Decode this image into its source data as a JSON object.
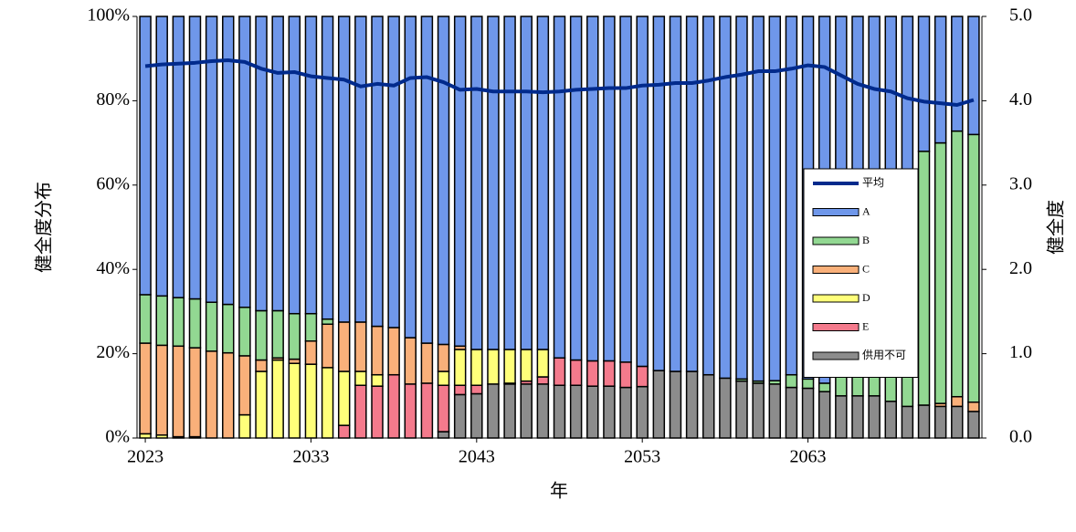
{
  "chart_data": {
    "type": "bar",
    "stacked": true,
    "x": [
      2023,
      2024,
      2025,
      2026,
      2027,
      2028,
      2029,
      2030,
      2031,
      2032,
      2033,
      2034,
      2035,
      2036,
      2037,
      2038,
      2039,
      2040,
      2041,
      2042,
      2043,
      2044,
      2045,
      2046,
      2047,
      2048,
      2049,
      2050,
      2051,
      2052,
      2053,
      2054,
      2055,
      2056,
      2057,
      2058,
      2059,
      2060,
      2061,
      2062,
      2063,
      2064,
      2065,
      2066,
      2067,
      2068,
      2069,
      2070,
      2071,
      2072,
      2073
    ],
    "xlim": [
      2022.5,
      2073.5
    ],
    "xticks": [
      2023,
      2033,
      2043,
      2053,
      2063
    ],
    "xlabel": "年",
    "ylabel": "健全度分布",
    "y2label": "健全度",
    "ylim": [
      0,
      100
    ],
    "yticks": [
      {
        "value": 0,
        "label": "0%"
      },
      {
        "value": 20,
        "label": "20%"
      },
      {
        "value": 40,
        "label": "40%"
      },
      {
        "value": 60,
        "label": "60%"
      },
      {
        "value": 80,
        "label": "80%"
      },
      {
        "value": 100,
        "label": "100%"
      }
    ],
    "y2lim": [
      0,
      5
    ],
    "y2ticks": [
      {
        "value": 0,
        "label": "0.0"
      },
      {
        "value": 1,
        "label": "1.0"
      },
      {
        "value": 2,
        "label": "2.0"
      },
      {
        "value": 3,
        "label": "3.0"
      },
      {
        "value": 4,
        "label": "4.0"
      },
      {
        "value": 5,
        "label": "5.0"
      }
    ],
    "legend": "right",
    "series": [
      {
        "name": "供用不可",
        "color": "#8c8c8c",
        "values": [
          0,
          0,
          0,
          0,
          0,
          0,
          0,
          0,
          0,
          0,
          0,
          0,
          0,
          0,
          0,
          0,
          0,
          0,
          1.5,
          10.3,
          10.5,
          12.8,
          12.8,
          12.8,
          12.8,
          12.5,
          12.5,
          12.3,
          12.3,
          12,
          12.2,
          16,
          15.8,
          15.8,
          15,
          14.2,
          13.5,
          13,
          12.8,
          12,
          11.8,
          11,
          10,
          10,
          10,
          8.7,
          7.5,
          7.8,
          7.5,
          7.5,
          6.3
        ]
      },
      {
        "name": "E",
        "color": "#f47a8c",
        "values": [
          0,
          0,
          0,
          0,
          0,
          0,
          0,
          0,
          0,
          0,
          0,
          0,
          3,
          12.5,
          12.3,
          15,
          12.8,
          13,
          11,
          2.2,
          2,
          0,
          0.2,
          0.7,
          1.7,
          6.5,
          6,
          6,
          6,
          6,
          4.8,
          0,
          0,
          0,
          0,
          0,
          0,
          0,
          0,
          0,
          0,
          0,
          0,
          0,
          0,
          0,
          0,
          0,
          0,
          0,
          0
        ]
      },
      {
        "name": "D",
        "color": "#ffff7a",
        "values": [
          1,
          0.7,
          0.3,
          0.3,
          0,
          0,
          5.5,
          15.8,
          18.5,
          17.7,
          17.5,
          16.7,
          12.8,
          3.3,
          2.7,
          0,
          0,
          0,
          3.3,
          8.5,
          8.5,
          8.2,
          8,
          7.5,
          6.5,
          0,
          0,
          0,
          0,
          0,
          0,
          0,
          0,
          0,
          0,
          0,
          0,
          0,
          0,
          0,
          0,
          0,
          0,
          0,
          0,
          0,
          0,
          0,
          0,
          0,
          0
        ]
      },
      {
        "name": "C",
        "color": "#f9b07a",
        "values": [
          21.5,
          21.3,
          21.5,
          21.1,
          20.6,
          20.2,
          14,
          2.7,
          0.5,
          1,
          5.5,
          10.3,
          11.7,
          11.7,
          11.5,
          11.2,
          11,
          9.5,
          6.4,
          0.8,
          0,
          0,
          0,
          0,
          0,
          0,
          0,
          0,
          0,
          0,
          0,
          0,
          0,
          0,
          0,
          0,
          0,
          0,
          0,
          0,
          0,
          0,
          0,
          0,
          0,
          0,
          0,
          0,
          0.7,
          2.3,
          2.2
        ]
      },
      {
        "name": "B",
        "color": "#92d892",
        "values": [
          11.5,
          11.7,
          11.5,
          11.6,
          11.6,
          11.5,
          11.5,
          11.7,
          11.2,
          10.8,
          6.5,
          1.2,
          0,
          0,
          0,
          0,
          0,
          0,
          0,
          0,
          0,
          0,
          0,
          0,
          0,
          0,
          0,
          0,
          0,
          0,
          0,
          0,
          0,
          0,
          0,
          0,
          0.5,
          0.5,
          0.8,
          3,
          2.2,
          2,
          20,
          31,
          32,
          43.3,
          51.5,
          60.2,
          61.8,
          63,
          63.5
        ]
      },
      {
        "name": "A",
        "color": "#6f97ea",
        "values": [
          66,
          66.3,
          66.7,
          67,
          67.8,
          68.3,
          69,
          69.8,
          69.8,
          70.5,
          70.5,
          71.8,
          72.5,
          72.5,
          73.5,
          73.8,
          76.2,
          77.5,
          77.8,
          78.2,
          79,
          79,
          79,
          79,
          79,
          81,
          81.5,
          81.7,
          81.7,
          82,
          83,
          84,
          84.2,
          84.2,
          85,
          85.8,
          86,
          86.5,
          86.4,
          85,
          86,
          87,
          70,
          59,
          58,
          48,
          41,
          32,
          30,
          27.2,
          28
        ]
      },
      {
        "name": "平均",
        "type": "line",
        "axis": "y2",
        "color": "#002a8c",
        "values": [
          4.41,
          4.43,
          4.44,
          4.45,
          4.47,
          4.48,
          4.46,
          4.38,
          4.33,
          4.34,
          4.29,
          4.27,
          4.25,
          4.17,
          4.2,
          4.18,
          4.27,
          4.28,
          4.22,
          4.13,
          4.14,
          4.11,
          4.11,
          4.11,
          4.1,
          4.11,
          4.13,
          4.14,
          4.15,
          4.15,
          4.18,
          4.19,
          4.21,
          4.21,
          4.24,
          4.28,
          4.31,
          4.35,
          4.35,
          4.38,
          4.42,
          4.4,
          4.3,
          4.2,
          4.14,
          4.11,
          4.03,
          3.99,
          3.97,
          3.95,
          4.01
        ]
      }
    ]
  }
}
